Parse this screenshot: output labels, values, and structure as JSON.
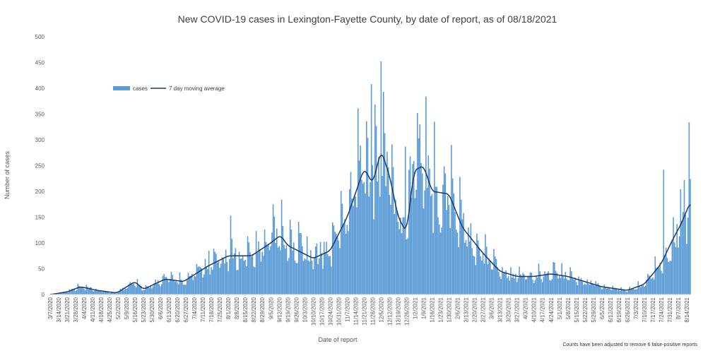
{
  "chart_data": {
    "type": "bar",
    "title": "New COVID-19 cases in Lexington-Fayette County, by date of report, as of 08/18/2021",
    "xlabel": "Date of report",
    "ylabel": "Number of cases",
    "ylim": [
      0,
      500
    ],
    "yticks": [
      0,
      50,
      100,
      150,
      200,
      250,
      300,
      350,
      400,
      450,
      500
    ],
    "grid": false,
    "legend_position": "top-left",
    "note": "Counts have been adjusted to remove 6 false-positive reports",
    "x_start": "2020-03-07",
    "x_end": "2021-08-17",
    "x_tick_labels": [
      "3/7/2020",
      "3/14/2020",
      "3/21/2020",
      "3/28/2020",
      "4/4/2020",
      "4/11/2020",
      "4/18/2020",
      "4/25/2020",
      "5/2/2020",
      "5/9/2020",
      "5/16/2020",
      "5/23/2020",
      "5/30/2020",
      "6/6/2020",
      "6/13/2020",
      "6/20/2020",
      "6/27/2020",
      "7/4/2020",
      "7/11/2020",
      "7/18/2020",
      "7/25/2020",
      "8/1/2020",
      "8/8/2020",
      "8/15/2020",
      "8/22/2020",
      "8/29/2020",
      "9/5/2020",
      "9/12/2020",
      "9/19/2020",
      "9/26/2020",
      "10/3/2020",
      "10/10/2020",
      "10/17/2020",
      "10/24/2020",
      "10/31/2020",
      "11/7/2020",
      "11/14/2020",
      "11/21/2020",
      "11/28/2020",
      "12/5/2020",
      "12/12/2020",
      "12/19/2020",
      "12/26/2020",
      "1/2/2021",
      "1/9/2021",
      "1/16/2021",
      "1/23/2021",
      "1/30/2021",
      "2/6/2021",
      "2/13/2021",
      "2/20/2021",
      "2/27/2021",
      "3/6/2021",
      "3/13/2021",
      "3/20/2021",
      "3/27/2021",
      "4/3/2021",
      "4/10/2021",
      "4/17/2021",
      "4/24/2021",
      "5/1/2021",
      "5/8/2021",
      "5/15/2021",
      "5/22/2021",
      "5/29/2021",
      "6/5/2021",
      "6/12/2021",
      "6/19/2021",
      "6/26/2021",
      "7/3/2021",
      "7/10/2021",
      "7/17/2021",
      "7/24/2021",
      "7/31/2021",
      "8/7/2021",
      "8/14/2021"
    ],
    "series": [
      {
        "name": "cases",
        "style": "bar",
        "color": "#5b9bd5",
        "peaks": [
          {
            "date": "2020-12-05",
            "value": 452
          },
          {
            "date": "2020-11-27",
            "value": 408
          },
          {
            "date": "2020-11-16",
            "value": 361
          },
          {
            "date": "2021-08-16",
            "value": 334
          },
          {
            "date": "2021-01-06",
            "value": 330
          },
          {
            "date": "2020-12-25",
            "value": 287
          },
          {
            "date": "2021-01-14",
            "value": 244
          },
          {
            "date": "2021-07-26",
            "value": 242
          }
        ]
      },
      {
        "name": "7 day moving average",
        "style": "line",
        "color": "#1f3864",
        "anchors": [
          [
            "2020-03-07",
            0
          ],
          [
            "2020-03-21",
            5
          ],
          [
            "2020-04-01",
            15
          ],
          [
            "2020-04-15",
            8
          ],
          [
            "2020-05-01",
            3
          ],
          [
            "2020-05-16",
            25
          ],
          [
            "2020-05-23",
            10
          ],
          [
            "2020-06-10",
            30
          ],
          [
            "2020-06-25",
            25
          ],
          [
            "2020-07-15",
            55
          ],
          [
            "2020-08-01",
            75
          ],
          [
            "2020-08-20",
            75
          ],
          [
            "2020-09-05",
            100
          ],
          [
            "2020-09-13",
            115
          ],
          [
            "2020-09-19",
            95
          ],
          [
            "2020-10-10",
            70
          ],
          [
            "2020-10-24",
            85
          ],
          [
            "2020-11-07",
            150
          ],
          [
            "2020-11-21",
            245
          ],
          [
            "2020-11-28",
            215
          ],
          [
            "2020-12-05",
            280
          ],
          [
            "2020-12-12",
            230
          ],
          [
            "2020-12-19",
            150
          ],
          [
            "2020-12-26",
            120
          ],
          [
            "2021-01-01",
            240
          ],
          [
            "2021-01-09",
            250
          ],
          [
            "2021-01-16",
            200
          ],
          [
            "2021-01-30",
            195
          ],
          [
            "2021-02-10",
            130
          ],
          [
            "2021-02-27",
            80
          ],
          [
            "2021-03-13",
            45
          ],
          [
            "2021-03-27",
            35
          ],
          [
            "2021-04-10",
            35
          ],
          [
            "2021-04-24",
            40
          ],
          [
            "2021-05-08",
            35
          ],
          [
            "2021-05-22",
            25
          ],
          [
            "2021-06-05",
            15
          ],
          [
            "2021-06-26",
            8
          ],
          [
            "2021-07-10",
            20
          ],
          [
            "2021-07-24",
            60
          ],
          [
            "2021-08-01",
            100
          ],
          [
            "2021-08-10",
            140
          ],
          [
            "2021-08-17",
            180
          ]
        ]
      }
    ]
  }
}
